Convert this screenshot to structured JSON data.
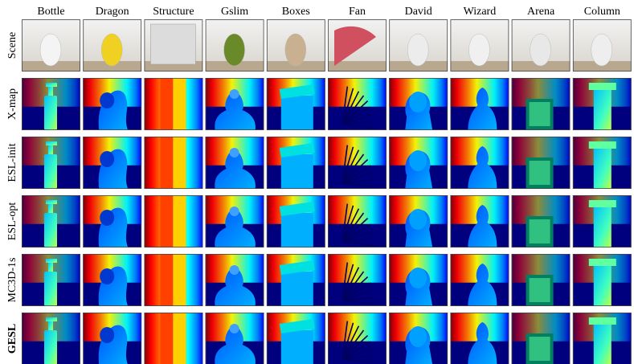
{
  "figure": {
    "columns": [
      "Bottle",
      "Dragon",
      "Structure",
      "Gslim",
      "Boxes",
      "Fan",
      "David",
      "Wizard",
      "Arena",
      "Column"
    ],
    "rows": [
      {
        "label": "Scene",
        "kind": "photo",
        "bold": false
      },
      {
        "label": "X-map",
        "kind": "depth",
        "bold": false
      },
      {
        "label": "ESL-init",
        "kind": "depth",
        "bold": false
      },
      {
        "label": "ESL-opt",
        "kind": "depth",
        "bold": false
      },
      {
        "label": "MC3D-1s",
        "kind": "depth",
        "bold": false
      },
      {
        "label": "GESL",
        "kind": "depth",
        "bold": true
      }
    ]
  },
  "colors": {
    "background_blue": "#00007f",
    "colormap": [
      "#00007f",
      "#0000ff",
      "#007fff",
      "#00ffff",
      "#7fff7f",
      "#ffff00",
      "#ff7f00",
      "#ff0000",
      "#7f0000"
    ]
  }
}
